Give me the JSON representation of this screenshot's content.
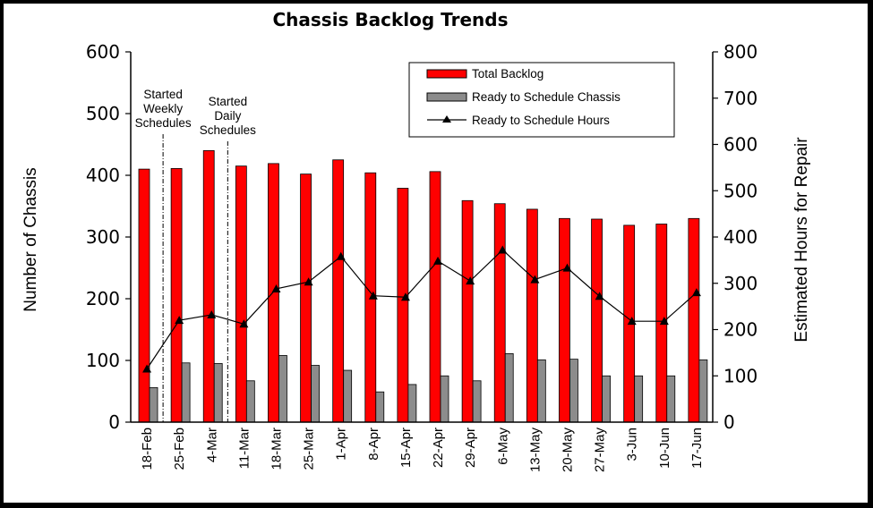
{
  "chart_data": {
    "type": "bar",
    "title": "Chassis Backlog Trends",
    "ylabel": "Number of Chassis",
    "y2label": "Estimated Hours for Repair",
    "ylim": [
      0,
      600
    ],
    "y2lim": [
      0,
      800
    ],
    "yticks": [
      "0",
      "100",
      "200",
      "300",
      "400",
      "500",
      "600"
    ],
    "y2ticks": [
      "0",
      "100",
      "200",
      "300",
      "400",
      "500",
      "600",
      "700",
      "800"
    ],
    "categories": [
      "18-Feb",
      "25-Feb",
      "4-Mar",
      "11-Mar",
      "18-Mar",
      "25-Mar",
      "1-Apr",
      "8-Apr",
      "15-Apr",
      "22-Apr",
      "29-Apr",
      "6-May",
      "13-May",
      "20-May",
      "27-May",
      "3-Jun",
      "10-Jun",
      "17-Jun"
    ],
    "series": [
      {
        "name": "Total Backlog",
        "type": "bar",
        "axis": "left",
        "color": "#ff0000",
        "values": [
          410,
          411,
          440,
          415,
          419,
          402,
          425,
          404,
          379,
          406,
          359,
          354,
          345,
          330,
          329,
          319,
          321,
          330
        ]
      },
      {
        "name": "Ready to Schedule Chassis",
        "type": "bar",
        "axis": "left",
        "color": "#8c8c8c",
        "values": [
          56,
          96,
          95,
          67,
          108,
          92,
          84,
          49,
          61,
          75,
          67,
          111,
          101,
          102,
          75,
          75,
          75,
          101
        ]
      },
      {
        "name": "Ready to Schedule Hours",
        "type": "line",
        "axis": "right",
        "color": "#000000",
        "values": [
          115,
          220,
          232,
          212,
          288,
          303,
          358,
          273,
          270,
          348,
          305,
          372,
          308,
          333,
          272,
          218,
          218,
          280
        ]
      }
    ],
    "annotations": [
      {
        "after_index": 0,
        "lines": [
          "Started",
          "Weekly",
          "Schedules"
        ]
      },
      {
        "after_index": 2,
        "lines": [
          "Started",
          "Daily",
          "Schedules"
        ]
      }
    ],
    "legend_position": "top-right",
    "grid": false
  }
}
